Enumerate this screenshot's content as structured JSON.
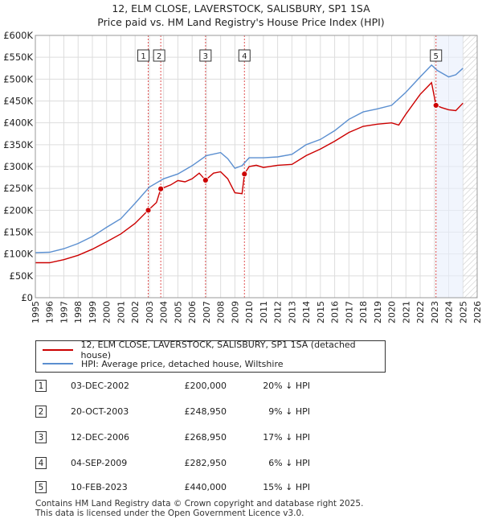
{
  "title_line1": "12, ELM CLOSE, LAVERSTOCK, SALISBURY, SP1 1SA",
  "title_line2": "Price paid vs. HM Land Registry's House Price Index (HPI)",
  "chart_data": {
    "type": "line",
    "title": "12, ELM CLOSE, LAVERSTOCK, SALISBURY, SP1 1SA",
    "subtitle": "Price paid vs. HM Land Registry's House Price Index (HPI)",
    "xlim": [
      1995,
      2026
    ],
    "ylim": [
      0,
      600000
    ],
    "x_ticks": [
      "1995",
      "1996",
      "1997",
      "1998",
      "1999",
      "2000",
      "2001",
      "2002",
      "2003",
      "2004",
      "2005",
      "2006",
      "2007",
      "2008",
      "2009",
      "2010",
      "2011",
      "2012",
      "2013",
      "2014",
      "2015",
      "2016",
      "2017",
      "2018",
      "2019",
      "2020",
      "2021",
      "2022",
      "2023",
      "2024",
      "2025",
      "2026"
    ],
    "y_ticks": [
      {
        "v": 0,
        "label": "£0"
      },
      {
        "v": 50000,
        "label": "£50K"
      },
      {
        "v": 100000,
        "label": "£100K"
      },
      {
        "v": 150000,
        "label": "£150K"
      },
      {
        "v": 200000,
        "label": "£200K"
      },
      {
        "v": 250000,
        "label": "£250K"
      },
      {
        "v": 300000,
        "label": "£300K"
      },
      {
        "v": 350000,
        "label": "£350K"
      },
      {
        "v": 400000,
        "label": "£400K"
      },
      {
        "v": 450000,
        "label": "£450K"
      },
      {
        "v": 500000,
        "label": "£500K"
      },
      {
        "v": 550000,
        "label": "£550K"
      },
      {
        "v": 600000,
        "label": "£600K"
      }
    ],
    "grid": true,
    "forecast_shading_from": 2025.0,
    "series": [
      {
        "name": "12, ELM CLOSE, LAVERSTOCK, SALISBURY, SP1 1SA (detached house)",
        "color": "#cc0000",
        "points": [
          [
            1995.0,
            80000
          ],
          [
            1996.0,
            80000
          ],
          [
            1997.0,
            87000
          ],
          [
            1998.0,
            97000
          ],
          [
            1999.0,
            111000
          ],
          [
            2000.0,
            128000
          ],
          [
            2001.0,
            146000
          ],
          [
            2002.0,
            170000
          ],
          [
            2002.92,
            200000
          ],
          [
            2003.5,
            218000
          ],
          [
            2003.8,
            248950
          ],
          [
            2004.5,
            258000
          ],
          [
            2005.0,
            268000
          ],
          [
            2005.5,
            265000
          ],
          [
            2006.0,
            272000
          ],
          [
            2006.5,
            285000
          ],
          [
            2006.94,
            268950
          ],
          [
            2007.5,
            285000
          ],
          [
            2008.0,
            288000
          ],
          [
            2008.5,
            272000
          ],
          [
            2009.0,
            240000
          ],
          [
            2009.5,
            238000
          ],
          [
            2009.67,
            282950
          ],
          [
            2010.0,
            300000
          ],
          [
            2010.5,
            303000
          ],
          [
            2011.0,
            298000
          ],
          [
            2012.0,
            303000
          ],
          [
            2013.0,
            305000
          ],
          [
            2014.0,
            325000
          ],
          [
            2015.0,
            340000
          ],
          [
            2016.0,
            358000
          ],
          [
            2017.0,
            378000
          ],
          [
            2018.0,
            392000
          ],
          [
            2019.0,
            397000
          ],
          [
            2020.0,
            400000
          ],
          [
            2020.5,
            395000
          ],
          [
            2021.0,
            420000
          ],
          [
            2022.0,
            465000
          ],
          [
            2022.8,
            492000
          ],
          [
            2023.11,
            440000
          ],
          [
            2023.5,
            435000
          ],
          [
            2024.0,
            430000
          ],
          [
            2024.5,
            428000
          ],
          [
            2025.0,
            445000
          ]
        ]
      },
      {
        "name": "HPI: Average price, detached house, Wiltshire",
        "color": "#5b8fd0",
        "points": [
          [
            1995.0,
            103000
          ],
          [
            1996.0,
            104000
          ],
          [
            1997.0,
            112000
          ],
          [
            1998.0,
            124000
          ],
          [
            1999.0,
            140000
          ],
          [
            2000.0,
            161000
          ],
          [
            2001.0,
            181000
          ],
          [
            2002.0,
            216000
          ],
          [
            2003.0,
            253000
          ],
          [
            2004.0,
            272000
          ],
          [
            2005.0,
            283000
          ],
          [
            2006.0,
            302000
          ],
          [
            2007.0,
            325000
          ],
          [
            2008.0,
            332000
          ],
          [
            2008.5,
            318000
          ],
          [
            2009.0,
            296000
          ],
          [
            2009.5,
            302000
          ],
          [
            2010.0,
            320000
          ],
          [
            2011.0,
            320000
          ],
          [
            2012.0,
            322000
          ],
          [
            2013.0,
            328000
          ],
          [
            2014.0,
            350000
          ],
          [
            2015.0,
            362000
          ],
          [
            2016.0,
            382000
          ],
          [
            2017.0,
            408000
          ],
          [
            2018.0,
            425000
          ],
          [
            2019.0,
            432000
          ],
          [
            2020.0,
            440000
          ],
          [
            2021.0,
            470000
          ],
          [
            2022.0,
            505000
          ],
          [
            2022.8,
            532000
          ],
          [
            2023.2,
            520000
          ],
          [
            2024.0,
            505000
          ],
          [
            2024.5,
            510000
          ],
          [
            2025.0,
            525000
          ]
        ]
      }
    ],
    "sales": [
      {
        "id": "1",
        "x": 2002.92,
        "y": 200000
      },
      {
        "id": "2",
        "x": 2003.8,
        "y": 248950
      },
      {
        "id": "3",
        "x": 2006.94,
        "y": 268950
      },
      {
        "id": "4",
        "x": 2009.67,
        "y": 282950
      },
      {
        "id": "5",
        "x": 2023.11,
        "y": 440000
      }
    ]
  },
  "legend": {
    "item1": "12, ELM CLOSE, LAVERSTOCK, SALISBURY, SP1 1SA (detached house)",
    "item2": "HPI: Average price, detached house, Wiltshire",
    "item1_color": "#cc0000",
    "item2_color": "#5b8fd0"
  },
  "sales_table": [
    {
      "num": "1",
      "date": "03-DEC-2002",
      "price": "£200,000",
      "hpi": "20% ↓ HPI"
    },
    {
      "num": "2",
      "date": "20-OCT-2003",
      "price": "£248,950",
      "hpi": "9% ↓ HPI"
    },
    {
      "num": "3",
      "date": "12-DEC-2006",
      "price": "£268,950",
      "hpi": "17% ↓ HPI"
    },
    {
      "num": "4",
      "date": "04-SEP-2009",
      "price": "£282,950",
      "hpi": "6% ↓ HPI"
    },
    {
      "num": "5",
      "date": "10-FEB-2023",
      "price": "£440,000",
      "hpi": "15% ↓ HPI"
    }
  ],
  "footer": {
    "line1": "Contains HM Land Registry data © Crown copyright and database right 2025.",
    "line2": "This data is licensed under the Open Government Licence v3.0."
  }
}
